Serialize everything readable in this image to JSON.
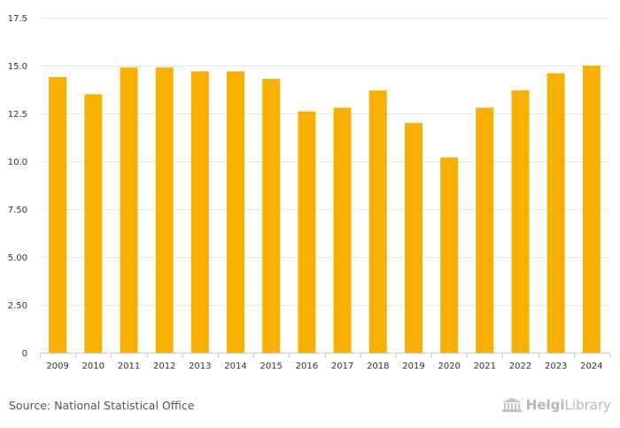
{
  "chart_data": {
    "type": "bar",
    "categories": [
      "2009",
      "2010",
      "2011",
      "2012",
      "2013",
      "2014",
      "2015",
      "2016",
      "2017",
      "2018",
      "2019",
      "2020",
      "2021",
      "2022",
      "2023",
      "2024"
    ],
    "values": [
      14.4,
      13.5,
      14.9,
      14.9,
      14.7,
      14.7,
      14.3,
      12.6,
      12.8,
      13.7,
      12.0,
      10.2,
      12.8,
      13.7,
      14.6,
      15.0
    ],
    "title": "",
    "xlabel": "",
    "ylabel": "",
    "ylim": [
      0,
      17.5
    ],
    "yticks": [
      {
        "value": 0,
        "label": "0"
      },
      {
        "value": 2.5,
        "label": "2.50"
      },
      {
        "value": 5,
        "label": "5.00"
      },
      {
        "value": 7.5,
        "label": "7.50"
      },
      {
        "value": 10,
        "label": "10.0"
      },
      {
        "value": 12.5,
        "label": "12.5"
      },
      {
        "value": 15,
        "label": "15.0"
      },
      {
        "value": 17.5,
        "label": "17.5"
      }
    ],
    "grid": true,
    "bar_color": "#f8b000"
  },
  "footer": {
    "source": "Source: National Statistical Office",
    "logo_bold": "Helgi",
    "logo_regular": "Library"
  }
}
